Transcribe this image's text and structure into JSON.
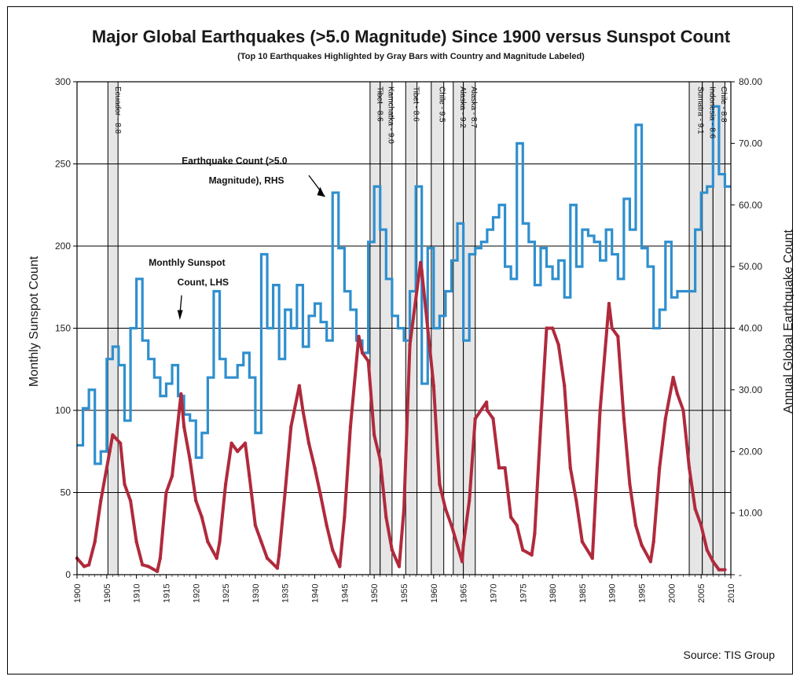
{
  "chart_data": {
    "type": "line",
    "title": "Major Global Earthquakes (>5.0 Magnitude) Since 1900 versus Sunspot Count",
    "subtitle": "(Top 10 Earthquakes Highlighted by Gray Bars with Country and Magnitude Labeled)",
    "xlabel": "",
    "ylabel": "Monthly Sunspot Count",
    "y2label": "Annual Global Earthquake Count",
    "xlim": [
      1900,
      2010
    ],
    "ylim": [
      0,
      300
    ],
    "y2lim": [
      0,
      80
    ],
    "x_ticks": [
      "1900",
      "1905",
      "1910",
      "1915",
      "1920",
      "1925",
      "1930",
      "1935",
      "1940",
      "1945",
      "1950",
      "1955",
      "1960",
      "1965",
      "1970",
      "1975",
      "1980",
      "1985",
      "1990",
      "1995",
      "2000",
      "2005",
      "2010"
    ],
    "y_ticks": [
      "0",
      "50",
      "100",
      "150",
      "200",
      "250",
      "300"
    ],
    "y2_ticks": [
      "-",
      "10.00",
      "20.00",
      "30.00",
      "40.00",
      "50.00",
      "60.00",
      "70.00",
      "80.00"
    ],
    "grid": true,
    "colors": {
      "sunspot": "#b02a3c",
      "earthquake": "#2f8fce",
      "bar_fill": "#e6e6e6"
    },
    "annotations": [
      {
        "text": "Earthquake Count (>5.0",
        "x": 1926.5,
        "y": 250
      },
      {
        "text": "Magnitude), RHS",
        "x": 1928.5,
        "y": 238
      },
      {
        "text": "Monthly Sunspot",
        "x": 1918.5,
        "y": 188
      },
      {
        "text": "Count, LHS",
        "x": 1921.2,
        "y": 176
      }
    ],
    "earthquake_bars": [
      {
        "label": "Ecuador - 8.8",
        "start": 1905.2,
        "end": 1906.9
      },
      {
        "label": "Tibet - 8.6",
        "start": 1949.3,
        "end": 1951.0
      },
      {
        "label": "Kamchatka - 9.0",
        "start": 1951.0,
        "end": 1953.0
      },
      {
        "label": "Tibet - 8.6",
        "start": 1955.3,
        "end": 1957.2
      },
      {
        "label": "Chile - 9.5",
        "start": 1959.6,
        "end": 1961.7
      },
      {
        "label": "Alaska - 9.2",
        "start": 1963.3,
        "end": 1965.0
      },
      {
        "label": "Alaska - 8.7",
        "start": 1965.0,
        "end": 1967.0
      },
      {
        "label": "Sumatra - 9.1",
        "start": 2003.0,
        "end": 2005.2
      },
      {
        "label": "Indonesia - 8.6",
        "start": 2005.2,
        "end": 2007.0
      },
      {
        "label": "Chile - 8.8",
        "start": 2007.0,
        "end": 2009.0
      }
    ],
    "series": [
      {
        "name": "Earthquake Count (>5.0 Magnitude), RHS",
        "axis": "right",
        "type": "step",
        "x": [
          1900,
          1901,
          1902,
          1903,
          1904,
          1905,
          1906,
          1907,
          1908,
          1909,
          1910,
          1911,
          1912,
          1913,
          1914,
          1915,
          1916,
          1917,
          1918,
          1919,
          1920,
          1921,
          1922,
          1923,
          1924,
          1925,
          1926,
          1927,
          1928,
          1929,
          1930,
          1931,
          1932,
          1933,
          1934,
          1935,
          1936,
          1937,
          1938,
          1939,
          1940,
          1941,
          1942,
          1943,
          1944,
          1945,
          1946,
          1947,
          1948,
          1949,
          1950,
          1951,
          1952,
          1953,
          1954,
          1955,
          1956,
          1957,
          1958,
          1959,
          1960,
          1961,
          1962,
          1963,
          1964,
          1965,
          1966,
          1967,
          1968,
          1969,
          1970,
          1971,
          1972,
          1973,
          1974,
          1975,
          1976,
          1977,
          1978,
          1979,
          1980,
          1981,
          1982,
          1983,
          1984,
          1985,
          1986,
          1987,
          1988,
          1989,
          1990,
          1991,
          1992,
          1993,
          1994,
          1995,
          1996,
          1997,
          1998,
          1999,
          2000,
          2001,
          2002,
          2003,
          2004,
          2005,
          2006,
          2007,
          2008,
          2009
        ],
        "values": [
          21,
          27,
          30,
          18,
          20,
          35,
          37,
          34,
          25,
          40,
          48,
          38,
          35,
          32,
          29,
          31,
          34,
          29,
          26,
          25,
          19,
          23,
          32,
          46,
          35,
          32,
          32,
          34,
          36,
          32,
          23,
          52,
          40,
          47,
          35,
          43,
          40,
          47,
          37,
          42,
          44,
          41,
          38,
          62,
          53,
          46,
          43,
          38,
          36,
          54,
          63,
          56,
          48,
          42,
          40,
          38,
          46,
          63,
          31,
          53,
          40,
          42,
          46,
          51,
          57,
          38,
          52,
          53,
          54,
          56,
          58,
          60,
          50,
          48,
          70,
          57,
          54,
          47,
          53,
          50,
          48,
          51,
          45,
          60,
          50,
          56,
          55,
          54,
          51,
          56,
          52,
          48,
          61,
          56,
          73,
          53,
          50,
          40,
          43,
          54,
          45,
          46,
          46,
          46,
          56,
          62,
          63,
          76,
          65,
          63
        ]
      },
      {
        "name": "Monthly Sunspot Count, LHS",
        "axis": "left",
        "type": "line",
        "x": [
          1900,
          1901.2,
          1902,
          1903,
          1904,
          1905.5,
          1906,
          1907.3,
          1908,
          1909,
          1910,
          1911,
          1912,
          1913.5,
          1914,
          1915,
          1916,
          1917.5,
          1918,
          1919,
          1920,
          1921,
          1922,
          1923.5,
          1924,
          1925,
          1926,
          1927,
          1928.3,
          1929,
          1930,
          1931,
          1932,
          1933.7,
          1934,
          1935,
          1936,
          1937.4,
          1938,
          1939,
          1940,
          1941,
          1942,
          1943,
          1944.2,
          1945,
          1946,
          1947.4,
          1948,
          1949,
          1950,
          1951,
          1952,
          1953,
          1954.2,
          1955,
          1956,
          1957.8,
          1958,
          1959,
          1960,
          1961,
          1962,
          1963,
          1964.8,
          1965,
          1966,
          1967,
          1968.9,
          1969,
          1970,
          1971,
          1972,
          1973,
          1974,
          1975,
          1976.5,
          1977,
          1978,
          1979,
          1980,
          1981,
          1982,
          1983,
          1984,
          1985,
          1986.7,
          1987,
          1988,
          1989.5,
          1990,
          1991,
          1992,
          1993,
          1994,
          1995,
          1996.5,
          1997,
          1998,
          1999,
          2000.3,
          2001,
          2002,
          2003,
          2004,
          2005,
          2006,
          2007,
          2008,
          2009
        ],
        "values": [
          10,
          5,
          6,
          20,
          45,
          75,
          85,
          80,
          55,
          45,
          20,
          6,
          5,
          2,
          10,
          50,
          60,
          110,
          90,
          70,
          45,
          35,
          20,
          10,
          20,
          55,
          80,
          75,
          80,
          60,
          30,
          20,
          10,
          4,
          12,
          50,
          90,
          115,
          100,
          80,
          65,
          48,
          30,
          15,
          5,
          35,
          90,
          145,
          135,
          130,
          85,
          70,
          35,
          15,
          5,
          40,
          140,
          190,
          185,
          150,
          115,
          55,
          40,
          30,
          8,
          18,
          45,
          95,
          105,
          100,
          95,
          65,
          65,
          35,
          30,
          15,
          12,
          25,
          90,
          150,
          150,
          140,
          115,
          65,
          45,
          20,
          10,
          30,
          100,
          165,
          150,
          145,
          95,
          55,
          30,
          18,
          8,
          20,
          65,
          95,
          120,
          110,
          100,
          65,
          40,
          30,
          15,
          8,
          3,
          3
        ]
      }
    ]
  },
  "source": "Source:  TIS Group"
}
